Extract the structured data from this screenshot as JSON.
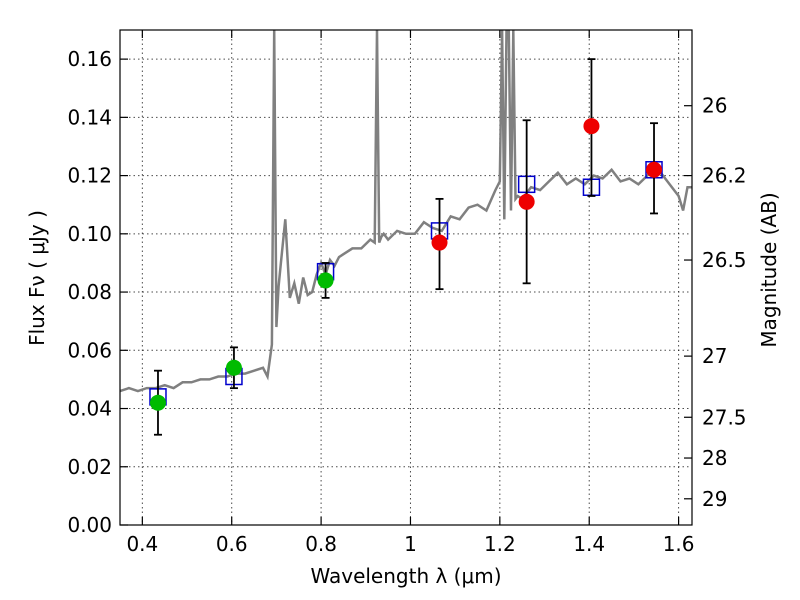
{
  "chart_data": {
    "type": "scatter",
    "xlabel": "Wavelength  λ (μm)",
    "ylabel": "Flux  Fν  ( μJy )",
    "ylabel_right": "Magnitude (AB)",
    "xlim": [
      0.35,
      1.63
    ],
    "ylim": [
      0.0,
      0.17
    ],
    "x_ticks": [
      0.4,
      0.6,
      0.8,
      1.0,
      1.2,
      1.4,
      1.6
    ],
    "x_tick_labels": [
      "0.4",
      "0.6",
      "0.8",
      "1",
      "1.2",
      "1.4",
      "1.6"
    ],
    "y_ticks": [
      0.0,
      0.02,
      0.04,
      0.06,
      0.08,
      0.1,
      0.12,
      0.14,
      0.16
    ],
    "y_tick_labels": [
      "0.00",
      "0.02",
      "0.04",
      "0.06",
      "0.08",
      "0.10",
      "0.12",
      "0.14",
      "0.16"
    ],
    "right_ticks": [
      {
        "label": "26",
        "flux": 0.144
      },
      {
        "label": "26.2",
        "flux": 0.12
      },
      {
        "label": "26.5",
        "flux": 0.091
      },
      {
        "label": "27",
        "flux": 0.058
      },
      {
        "label": "27.5",
        "flux": 0.037
      },
      {
        "label": "28",
        "flux": 0.023
      },
      {
        "label": "29",
        "flux": 0.009
      }
    ],
    "grid": true,
    "series": [
      {
        "marker": "line",
        "color": "#808080",
        "x": [
          0.35,
          0.37,
          0.39,
          0.41,
          0.43,
          0.45,
          0.47,
          0.49,
          0.51,
          0.53,
          0.55,
          0.57,
          0.59,
          0.61,
          0.63,
          0.65,
          0.67,
          0.68,
          0.69,
          0.695,
          0.7,
          0.705,
          0.71,
          0.72,
          0.73,
          0.74,
          0.75,
          0.76,
          0.77,
          0.78,
          0.79,
          0.8,
          0.81,
          0.82,
          0.83,
          0.84,
          0.85,
          0.87,
          0.89,
          0.91,
          0.92,
          0.925,
          0.93,
          0.935,
          0.94,
          0.95,
          0.97,
          0.99,
          1.01,
          1.03,
          1.05,
          1.07,
          1.09,
          1.11,
          1.13,
          1.15,
          1.17,
          1.19,
          1.2,
          1.205,
          1.21,
          1.215,
          1.22,
          1.225,
          1.23,
          1.235,
          1.24,
          1.25,
          1.27,
          1.29,
          1.31,
          1.33,
          1.35,
          1.37,
          1.39,
          1.41,
          1.43,
          1.45,
          1.47,
          1.49,
          1.51,
          1.53,
          1.55,
          1.57,
          1.59,
          1.6,
          1.61,
          1.62,
          1.63
        ],
        "y": [
          0.046,
          0.047,
          0.046,
          0.047,
          0.047,
          0.048,
          0.047,
          0.049,
          0.049,
          0.05,
          0.05,
          0.051,
          0.051,
          0.052,
          0.052,
          0.053,
          0.054,
          0.051,
          0.062,
          0.17,
          0.068,
          0.082,
          0.09,
          0.105,
          0.078,
          0.083,
          0.076,
          0.085,
          0.079,
          0.08,
          0.086,
          0.09,
          0.086,
          0.091,
          0.089,
          0.092,
          0.093,
          0.095,
          0.095,
          0.098,
          0.097,
          0.17,
          0.097,
          0.099,
          0.1,
          0.098,
          0.101,
          0.1,
          0.1,
          0.104,
          0.102,
          0.101,
          0.106,
          0.105,
          0.109,
          0.11,
          0.108,
          0.115,
          0.118,
          0.17,
          0.105,
          0.17,
          0.17,
          0.108,
          0.17,
          0.112,
          0.113,
          0.112,
          0.116,
          0.115,
          0.118,
          0.121,
          0.117,
          0.119,
          0.117,
          0.12,
          0.119,
          0.122,
          0.118,
          0.119,
          0.117,
          0.12,
          0.123,
          0.119,
          0.115,
          0.113,
          0.108,
          0.116,
          0.116
        ]
      },
      {
        "marker": "open-square",
        "color": "#0000cc",
        "x": [
          0.435,
          0.605,
          0.81,
          1.065,
          1.26,
          1.405,
          1.545
        ],
        "y": [
          0.044,
          0.051,
          0.087,
          0.101,
          0.117,
          0.116,
          0.122
        ]
      },
      {
        "marker": "filled-circle",
        "color": "#00bb00",
        "x": [
          0.435,
          0.605,
          0.81
        ],
        "y": [
          0.042,
          0.054,
          0.084
        ],
        "yerr_low": [
          0.031,
          0.047,
          0.078
        ],
        "yerr_high": [
          0.053,
          0.061,
          0.09
        ]
      },
      {
        "marker": "filled-circle",
        "color": "#ee0000",
        "x": [
          1.065,
          1.26,
          1.405,
          1.545
        ],
        "y": [
          0.097,
          0.111,
          0.137,
          0.122
        ],
        "yerr_low": [
          0.081,
          0.083,
          0.113,
          0.107
        ],
        "yerr_high": [
          0.112,
          0.139,
          0.16,
          0.138
        ]
      }
    ]
  }
}
